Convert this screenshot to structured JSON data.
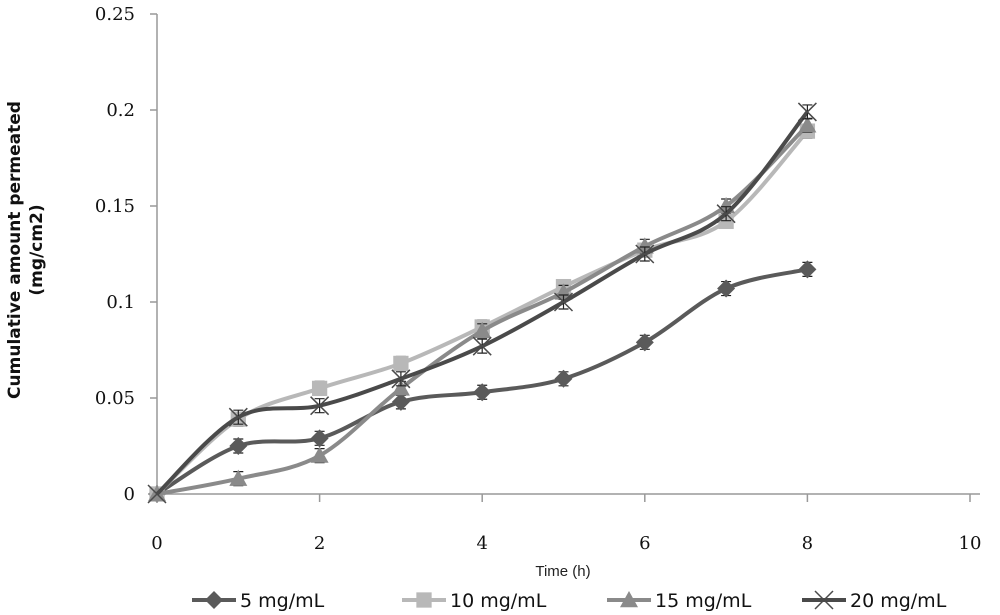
{
  "chart_data": {
    "type": "line",
    "title": "",
    "xlabel": "Time (h)",
    "ylabel": [
      "Cumulative amount permeated",
      "(mg/cm2)"
    ],
    "xlim": [
      0,
      10
    ],
    "ylim": [
      0,
      0.25
    ],
    "xticks": [
      "0",
      "2",
      "4",
      "6",
      "8",
      "10"
    ],
    "yticks": [
      "0",
      "0.05",
      "0.1",
      "0.15",
      "0.2",
      "0.25"
    ],
    "grid": false,
    "legend_position": "bottom",
    "x": [
      0,
      1,
      2,
      3,
      4,
      5,
      6,
      7,
      8
    ],
    "series": [
      {
        "name": "5 mg/mL",
        "marker": "diamond",
        "color": "#5a5a5a",
        "values": [
          0,
          0.025,
          0.029,
          0.048,
          0.053,
          0.06,
          0.079,
          0.107,
          0.117
        ]
      },
      {
        "name": "10 mg/mL",
        "marker": "square",
        "color": "#b8b8b8",
        "values": [
          0,
          0.039,
          0.055,
          0.068,
          0.087,
          0.108,
          0.127,
          0.142,
          0.189
        ]
      },
      {
        "name": "15 mg/mL",
        "marker": "triangle",
        "color": "#8a8a8a",
        "values": [
          0,
          0.008,
          0.02,
          0.055,
          0.085,
          0.105,
          0.129,
          0.15,
          0.192
        ]
      },
      {
        "name": "20 mg/mL",
        "marker": "x",
        "color": "#4a4a4a",
        "values": [
          0,
          0.04,
          0.046,
          0.06,
          0.077,
          0.1,
          0.125,
          0.146,
          0.199
        ]
      }
    ]
  }
}
